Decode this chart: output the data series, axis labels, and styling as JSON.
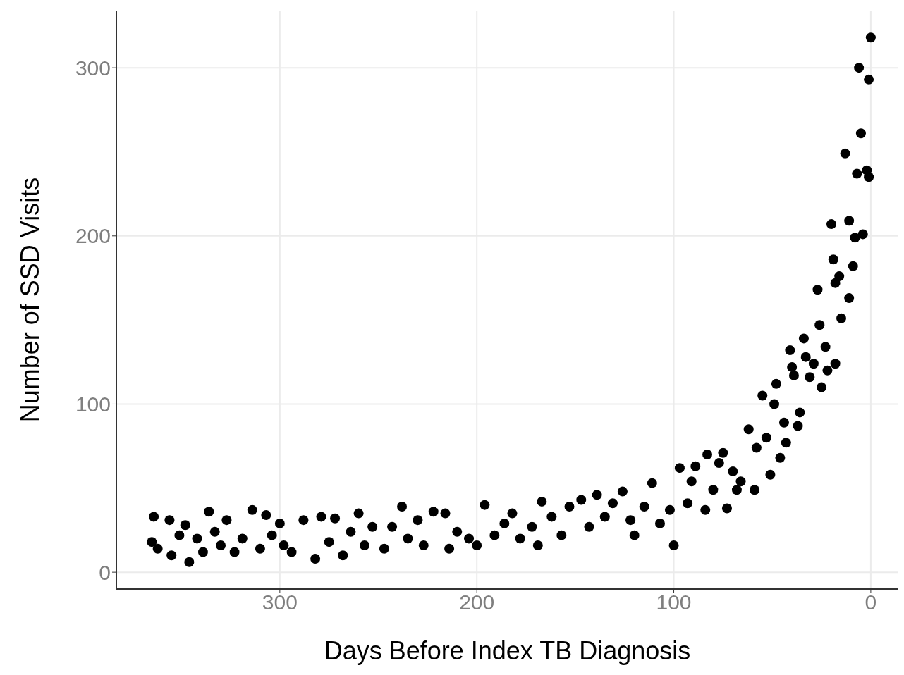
{
  "chart_data": {
    "type": "scatter",
    "xlabel": "Days Before Index TB Diagnosis",
    "ylabel": "Number of SSD Visits",
    "xlim": [
      383,
      -14
    ],
    "xticks": [
      300,
      200,
      100,
      0
    ],
    "ylim": [
      -10,
      334
    ],
    "yticks": [
      0,
      100,
      200,
      300
    ],
    "grid": true,
    "marker": "circle",
    "series": [
      {
        "color": "#000000",
        "x": [
          365,
          364,
          362,
          356,
          355,
          351,
          348,
          346,
          342,
          339,
          336,
          333,
          330,
          327,
          323,
          319,
          314,
          310,
          307,
          304,
          300,
          298,
          294,
          288,
          282,
          279,
          275,
          272,
          268,
          264,
          260,
          257,
          253,
          247,
          243,
          238,
          235,
          230,
          227,
          222,
          216,
          214,
          210,
          204,
          200,
          196,
          191,
          186,
          182,
          178,
          172,
          169,
          167,
          162,
          157,
          153,
          147,
          143,
          139,
          135,
          131,
          126,
          122,
          120,
          115,
          111,
          107,
          102,
          100,
          97,
          93,
          91,
          89,
          84,
          83,
          80,
          77,
          75,
          73,
          70,
          68,
          66,
          62,
          59,
          58,
          55,
          53,
          51,
          49,
          48,
          46,
          44,
          43,
          41,
          40,
          39,
          37,
          36,
          34,
          33,
          31,
          29,
          27,
          26,
          25,
          23,
          22,
          20,
          19,
          18,
          18,
          16,
          15,
          13,
          11,
          11,
          9,
          8,
          7,
          6,
          5,
          4,
          2,
          1,
          1,
          0
        ],
        "values": [
          18,
          33,
          14,
          31,
          10,
          22,
          28,
          6,
          20,
          12,
          36,
          24,
          16,
          31,
          12,
          20,
          37,
          14,
          34,
          22,
          29,
          16,
          12,
          31,
          8,
          33,
          18,
          32,
          10,
          24,
          35,
          16,
          27,
          14,
          27,
          39,
          20,
          31,
          16,
          36,
          35,
          14,
          24,
          20,
          16,
          40,
          22,
          29,
          35,
          20,
          27,
          16,
          42,
          33,
          22,
          39,
          43,
          27,
          46,
          33,
          41,
          48,
          31,
          22,
          39,
          53,
          29,
          37,
          16,
          62,
          41,
          54,
          63,
          37,
          70,
          49,
          65,
          71,
          38,
          60,
          49,
          54,
          85,
          49,
          74,
          105,
          80,
          58,
          100,
          112,
          68,
          89,
          77,
          132,
          122,
          117,
          87,
          95,
          139,
          128,
          116,
          124,
          168,
          147,
          110,
          134,
          120,
          207,
          186,
          172,
          124,
          176,
          151,
          249,
          209,
          163,
          182,
          199,
          237,
          300,
          261,
          201,
          239,
          235,
          293,
          318
        ]
      }
    ]
  }
}
